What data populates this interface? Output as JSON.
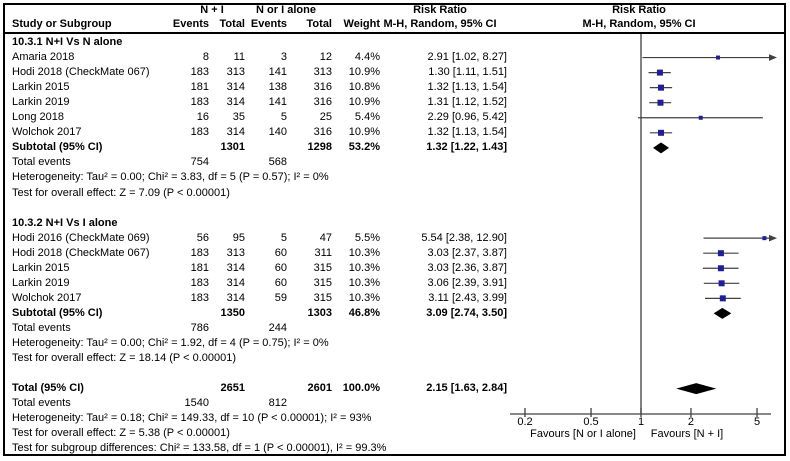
{
  "header": {
    "study_col": "Study or Subgroup",
    "events": "Events",
    "total": "Total",
    "weight": "Weight",
    "risk_ratio": "Risk Ratio",
    "method": "M-H, Random, 95% CI"
  },
  "colors": {
    "marker": "#1f1f99",
    "ci_line": "#404040",
    "diamond": "#000000",
    "axis": "#404040",
    "border": "#000000",
    "text": "#000000",
    "background": "#ffffff"
  },
  "chart_data": {
    "type": "forest",
    "effect_measure": "Risk Ratio",
    "method": "M-H, Random, 95% CI",
    "x_scale": "log",
    "x_ticks": [
      0.2,
      0.5,
      1,
      2,
      5
    ],
    "x_tick_labels": [
      "0.2",
      "0.5",
      "1",
      "2",
      "5"
    ],
    "favours_left": "Favours [N or I alone]",
    "favours_right": "Favours [N + I]",
    "groups": {
      "group1": "N + I",
      "group2": "N or I alone"
    },
    "rows": [
      {
        "kind": "subgroup",
        "label": "10.3.1 N+I Vs N alone"
      },
      {
        "kind": "study",
        "label": "Amaria 2018",
        "events1": "8",
        "total1": "11",
        "events2": "3",
        "total2": "12",
        "weight": "4.4%",
        "weight_pct": 4.4,
        "ci_text": "2.91 [1.02, 8.27]",
        "rr": 2.91,
        "lo": 1.02,
        "hi": 8.27
      },
      {
        "kind": "study",
        "label": "Hodi 2018 (CheckMate 067)",
        "events1": "183",
        "total1": "313",
        "events2": "141",
        "total2": "313",
        "weight": "10.9%",
        "weight_pct": 10.9,
        "ci_text": "1.30 [1.11, 1.51]",
        "rr": 1.3,
        "lo": 1.11,
        "hi": 1.51
      },
      {
        "kind": "study",
        "label": "Larkin 2015",
        "events1": "181",
        "total1": "314",
        "events2": "138",
        "total2": "316",
        "weight": "10.8%",
        "weight_pct": 10.8,
        "ci_text": "1.32 [1.13, 1.54]",
        "rr": 1.32,
        "lo": 1.13,
        "hi": 1.54
      },
      {
        "kind": "study",
        "label": "Larkin 2019",
        "events1": "183",
        "total1": "314",
        "events2": "141",
        "total2": "316",
        "weight": "10.9%",
        "weight_pct": 10.9,
        "ci_text": "1.31 [1.12, 1.52]",
        "rr": 1.31,
        "lo": 1.12,
        "hi": 1.52
      },
      {
        "kind": "study",
        "label": "Long 2018",
        "events1": "16",
        "total1": "35",
        "events2": "5",
        "total2": "25",
        "weight": "5.4%",
        "weight_pct": 5.4,
        "ci_text": "2.29 [0.96, 5.42]",
        "rr": 2.29,
        "lo": 0.96,
        "hi": 5.42
      },
      {
        "kind": "study",
        "label": "Wolchok 2017",
        "events1": "183",
        "total1": "314",
        "events2": "140",
        "total2": "316",
        "weight": "10.9%",
        "weight_pct": 10.9,
        "ci_text": "1.32 [1.13, 1.54]",
        "rr": 1.32,
        "lo": 1.13,
        "hi": 1.54
      },
      {
        "kind": "subtotal",
        "label": "Subtotal (95% CI)",
        "total1": "1301",
        "total2": "1298",
        "weight": "53.2%",
        "ci_text": "1.32 [1.22, 1.43]",
        "rr": 1.32,
        "lo": 1.22,
        "hi": 1.43
      },
      {
        "kind": "events",
        "label": "Total events",
        "events1": "754",
        "events2": "568"
      },
      {
        "kind": "note",
        "label": "Heterogeneity: Tau² = 0.00; Chi² = 3.83, df = 5 (P = 0.57); I² = 0%"
      },
      {
        "kind": "note",
        "label": "Test for overall effect: Z = 7.09 (P < 0.00001)"
      },
      {
        "kind": "blank",
        "label": ""
      },
      {
        "kind": "subgroup",
        "label": "10.3.2 N+I Vs I alone"
      },
      {
        "kind": "study",
        "label": "Hodi 2016 (CheckMate 069)",
        "events1": "56",
        "total1": "95",
        "events2": "5",
        "total2": "47",
        "weight": "5.5%",
        "weight_pct": 5.5,
        "ci_text": "5.54 [2.38, 12.90]",
        "rr": 5.54,
        "lo": 2.38,
        "hi": 12.9
      },
      {
        "kind": "study",
        "label": "Hodi 2018 (CheckMate 067)",
        "events1": "183",
        "total1": "313",
        "events2": "60",
        "total2": "311",
        "weight": "10.3%",
        "weight_pct": 10.3,
        "ci_text": "3.03 [2.37, 3.87]",
        "rr": 3.03,
        "lo": 2.37,
        "hi": 3.87
      },
      {
        "kind": "study",
        "label": "Larkin 2015",
        "events1": "181",
        "total1": "314",
        "events2": "60",
        "total2": "315",
        "weight": "10.3%",
        "weight_pct": 10.3,
        "ci_text": "3.03 [2.36, 3.87]",
        "rr": 3.03,
        "lo": 2.36,
        "hi": 3.87
      },
      {
        "kind": "study",
        "label": "Larkin 2019",
        "events1": "183",
        "total1": "314",
        "events2": "60",
        "total2": "315",
        "weight": "10.3%",
        "weight_pct": 10.3,
        "ci_text": "3.06 [2.39, 3.91]",
        "rr": 3.06,
        "lo": 2.39,
        "hi": 3.91
      },
      {
        "kind": "study",
        "label": "Wolchok 2017",
        "events1": "183",
        "total1": "314",
        "events2": "59",
        "total2": "315",
        "weight": "10.3%",
        "weight_pct": 10.3,
        "ci_text": "3.11 [2.43, 3.99]",
        "rr": 3.11,
        "lo": 2.43,
        "hi": 3.99
      },
      {
        "kind": "subtotal",
        "label": "Subtotal (95% CI)",
        "total1": "1350",
        "total2": "1303",
        "weight": "46.8%",
        "ci_text": "3.09 [2.74, 3.50]",
        "rr": 3.09,
        "lo": 2.74,
        "hi": 3.5
      },
      {
        "kind": "events",
        "label": "Total events",
        "events1": "786",
        "events2": "244"
      },
      {
        "kind": "note",
        "label": "Heterogeneity: Tau² = 0.00; Chi² = 1.92, df = 4 (P = 0.75); I² = 0%"
      },
      {
        "kind": "note",
        "label": "Test for overall effect: Z = 18.14 (P < 0.00001)"
      },
      {
        "kind": "blank",
        "label": ""
      },
      {
        "kind": "total",
        "label": "Total (95% CI)",
        "total1": "2651",
        "total2": "2601",
        "weight": "100.0%",
        "ci_text": "2.15 [1.63, 2.84]",
        "rr": 2.15,
        "lo": 1.63,
        "hi": 2.84
      },
      {
        "kind": "events",
        "label": "Total events",
        "events1": "1540",
        "events2": "812"
      },
      {
        "kind": "note",
        "label": "Heterogeneity: Tau² = 0.18; Chi² = 149.33, df = 10 (P < 0.00001); I² = 93%"
      },
      {
        "kind": "note",
        "label": "Test for overall effect: Z = 5.38 (P < 0.00001)"
      },
      {
        "kind": "note",
        "label": "Test for subgroup differences: Chi² = 133.58, df = 1 (P < 0.00001), I² = 99.3%"
      }
    ]
  }
}
